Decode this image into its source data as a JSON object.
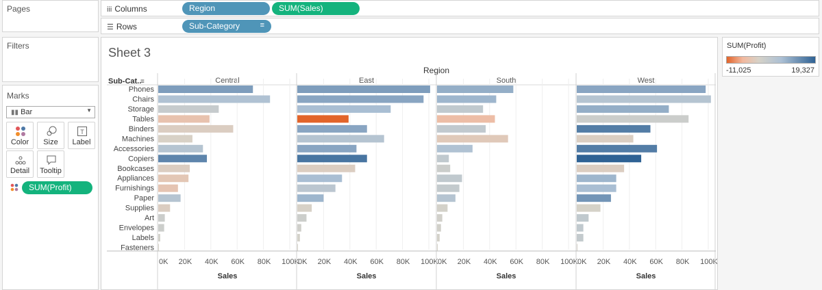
{
  "cards": {
    "pages_title": "Pages",
    "filters_title": "Filters",
    "marks_title": "Marks"
  },
  "shelves": {
    "columns_label": "Columns",
    "rows_label": "Rows",
    "columns_pills": [
      "Region",
      "SUM(Sales)"
    ],
    "rows_pills": [
      "Sub-Category"
    ]
  },
  "marks": {
    "mark_type": "Bar",
    "buttons": [
      "Color",
      "Size",
      "Label",
      "Detail",
      "Tooltip"
    ],
    "color_field": "SUM(Profit)"
  },
  "sheet": {
    "title": "Sheet 3",
    "column_header": "Region",
    "row_header": "Sub-Cat..",
    "x_axis_title": "Sales"
  },
  "legend": {
    "title": "SUM(Profit)",
    "min_label": "-11,025",
    "max_label": "19,327",
    "min": -11025,
    "max": 19327,
    "neg_color": "#e2642a",
    "mid_color": "#d6d2c8",
    "pos_color": "#2f6294"
  },
  "chart_data": {
    "type": "bar",
    "orientation": "horizontal",
    "panels": [
      "Central",
      "East",
      "South",
      "West"
    ],
    "categories": [
      "Phones",
      "Chairs",
      "Storage",
      "Tables",
      "Binders",
      "Machines",
      "Accessories",
      "Copiers",
      "Bookcases",
      "Appliances",
      "Furnishings",
      "Paper",
      "Supplies",
      "Art",
      "Envelopes",
      "Labels",
      "Fasteners"
    ],
    "xlim": [
      0,
      100000
    ],
    "x_ticks": [
      "0K",
      "20K",
      "40K",
      "60K",
      "80K",
      "100K"
    ],
    "xlabel": "Sales",
    "ylabel": "Sub-Category",
    "color_measure": "SUM(Profit)",
    "series": [
      {
        "name": "Central",
        "values": [
          72000,
          85000,
          46000,
          39000,
          57000,
          26000,
          34000,
          37000,
          24000,
          23000,
          15000,
          17000,
          9000,
          5000,
          4500,
          1500,
          500
        ],
        "color_values": [
          12000,
          7000,
          3000,
          -3500,
          -1000,
          -300,
          6000,
          15000,
          -1000,
          -2500,
          -3000,
          6000,
          -1000,
          2000,
          1800,
          900,
          200
        ]
      },
      {
        "name": "East",
        "values": [
          101000,
          96000,
          71000,
          39000,
          53000,
          66000,
          45000,
          53000,
          44000,
          34000,
          29000,
          20000,
          11000,
          7000,
          3000,
          2000,
          500
        ],
        "color_values": [
          12000,
          11000,
          8000,
          -11025,
          11000,
          6000,
          11000,
          17000,
          -1000,
          8000,
          5000,
          9000,
          -200,
          1900,
          1300,
          600,
          200
        ]
      },
      {
        "name": "South",
        "values": [
          58000,
          45000,
          35000,
          44000,
          37000,
          54000,
          27000,
          9000,
          10000,
          19000,
          17000,
          14000,
          8000,
          4000,
          3000,
          2000,
          500
        ],
        "color_values": [
          10000,
          9000,
          4000,
          -4600,
          3900,
          -2000,
          7000,
          4000,
          2000,
          4000,
          3500,
          6000,
          500,
          1000,
          900,
          600,
          200
        ]
      },
      {
        "name": "West",
        "values": [
          98000,
          102000,
          70000,
          85000,
          56000,
          43000,
          61000,
          49000,
          36000,
          30000,
          30000,
          26000,
          18000,
          9000,
          5000,
          5000,
          500
        ],
        "color_values": [
          11000,
          6000,
          10000,
          2000,
          16000,
          -800,
          16000,
          19327,
          -1000,
          9000,
          8000,
          13000,
          100,
          4000,
          4000,
          3500,
          300
        ]
      }
    ]
  }
}
